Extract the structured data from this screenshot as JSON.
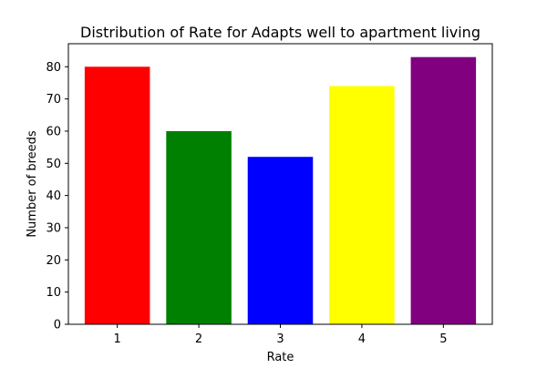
{
  "chart_data": {
    "type": "bar",
    "title": "Distribution of Rate for Adapts well to apartment living",
    "xlabel": "Rate",
    "ylabel": "Number of breeds",
    "categories": [
      "1",
      "2",
      "3",
      "4",
      "5"
    ],
    "values": [
      80,
      60,
      52,
      74,
      83
    ],
    "colors": [
      "#ff0000",
      "#008000",
      "#0000ff",
      "#ffff00",
      "#800080"
    ],
    "ylim": [
      0,
      87.15
    ],
    "yticks": [
      0,
      10,
      20,
      30,
      40,
      50,
      60,
      70,
      80
    ],
    "grid": false,
    "legend": "none"
  }
}
